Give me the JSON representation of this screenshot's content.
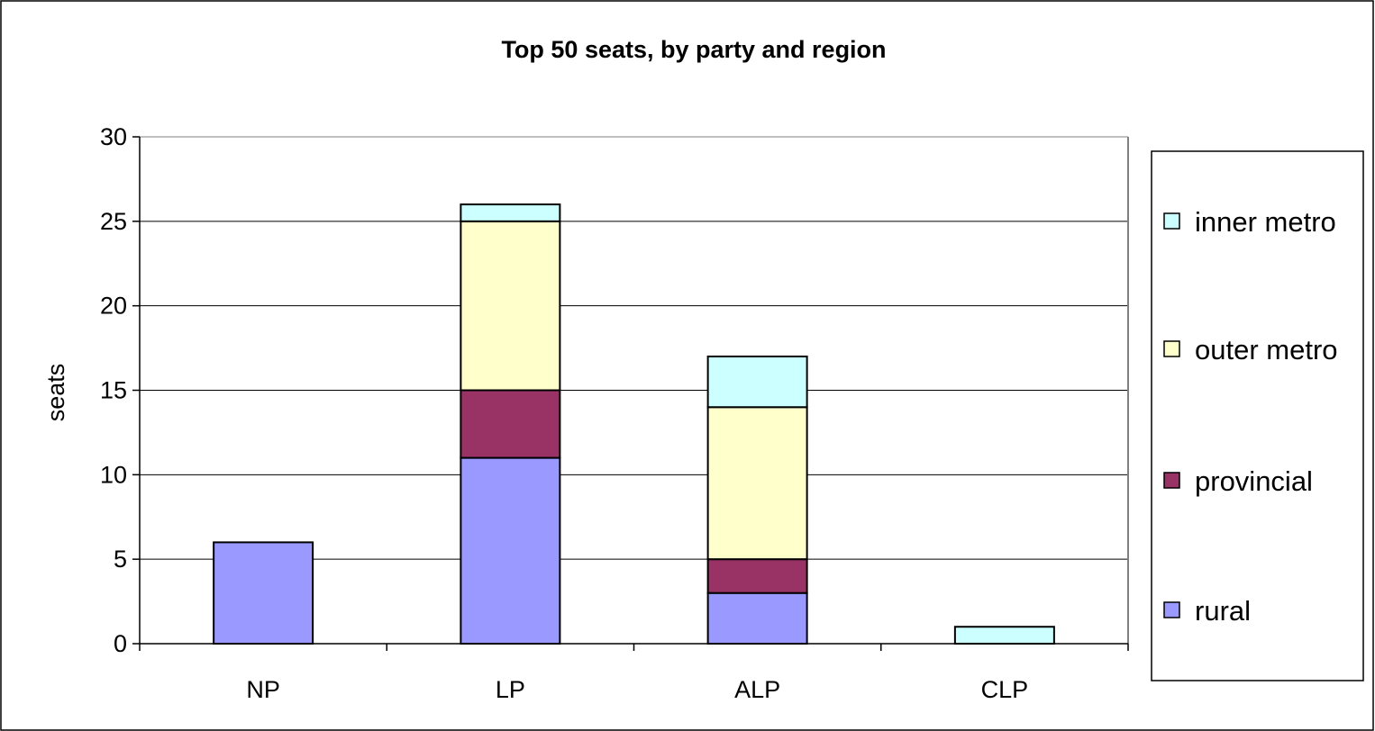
{
  "chart_data": {
    "type": "bar",
    "stacked": true,
    "title": "Top 50 seats, by party and region",
    "xlabel": "",
    "ylabel": "seats",
    "ylim": [
      0,
      30
    ],
    "yticks": [
      0,
      5,
      10,
      15,
      20,
      25,
      30
    ],
    "categories": [
      "NP",
      "LP",
      "ALP",
      "CLP"
    ],
    "series": [
      {
        "name": "rural",
        "color": "#9999ff",
        "values": [
          6,
          11,
          3,
          0
        ]
      },
      {
        "name": "provincial",
        "color": "#993366",
        "values": [
          0,
          4,
          2,
          0
        ]
      },
      {
        "name": "outer metro",
        "color": "#ffffcc",
        "values": [
          0,
          10,
          9,
          0
        ]
      },
      {
        "name": "inner metro",
        "color": "#ccffff",
        "values": [
          0,
          1,
          3,
          1
        ]
      }
    ],
    "legend_position": "right",
    "legend_order": [
      "inner metro",
      "outer metro",
      "provincial",
      "rural"
    ],
    "grid": {
      "y": true,
      "x": false
    }
  }
}
